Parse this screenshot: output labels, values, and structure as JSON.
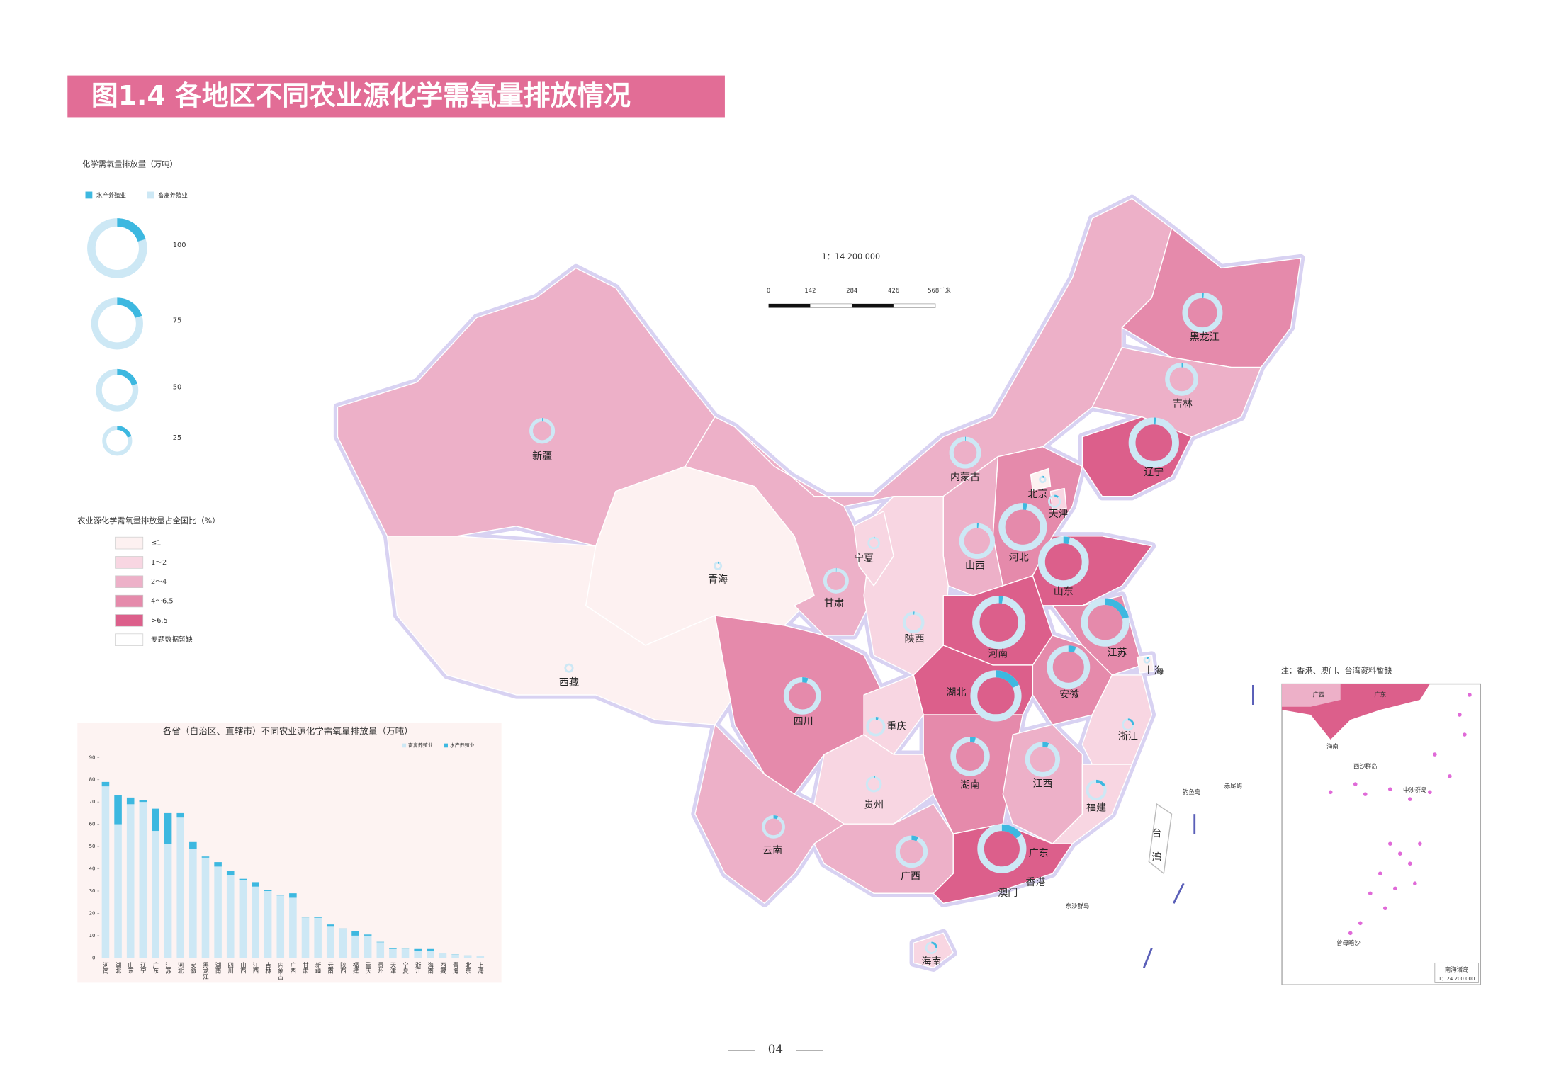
{
  "title": "图1.4  各地区不同农业源化学需氧量排放情况",
  "legend": {
    "size_title": "化学需氧量排放量（万吨）",
    "items": [
      {
        "name": "水产养殖业",
        "color": "#3db8e0"
      },
      {
        "name": "畜禽养殖业",
        "color": "#cde8f5"
      }
    ],
    "sizes": [
      100,
      75,
      50,
      25
    ],
    "class_title": "农业源化学需氧量排放量占全国比（%）",
    "classes": [
      {
        "label": "≤1",
        "color": "#fdf1f1"
      },
      {
        "label": "1～2",
        "color": "#f8d6e2"
      },
      {
        "label": "2～4",
        "color": "#edb0c8"
      },
      {
        "label": "4～6.5",
        "color": "#e58aab"
      },
      {
        "label": ">6.5",
        "color": "#dc5f8b"
      },
      {
        "label": "专题数据暂缺",
        "color": "#ffffff"
      }
    ]
  },
  "scale": {
    "ratio": "1：14 200 000",
    "ticks": [
      "0",
      "142",
      "284",
      "426",
      "568千米"
    ]
  },
  "map": {
    "provinces": [
      {
        "name": "新疆",
        "class": 2
      },
      {
        "name": "西藏",
        "class": 0
      },
      {
        "name": "青海",
        "class": 0
      },
      {
        "name": "甘肃",
        "class": 2
      },
      {
        "name": "内蒙古",
        "class": 2
      },
      {
        "name": "黑龙江",
        "class": 3
      },
      {
        "name": "吉林",
        "class": 2
      },
      {
        "name": "辽宁",
        "class": 4
      },
      {
        "name": "河北",
        "class": 3
      },
      {
        "name": "山西",
        "class": 2
      },
      {
        "name": "山东",
        "class": 4
      },
      {
        "name": "陕西",
        "class": 1
      },
      {
        "name": "宁夏",
        "class": 1
      },
      {
        "name": "河南",
        "class": 4
      },
      {
        "name": "江苏",
        "class": 3
      },
      {
        "name": "安徽",
        "class": 3
      },
      {
        "name": "湖北",
        "class": 4
      },
      {
        "name": "四川",
        "class": 3
      },
      {
        "name": "重庆",
        "class": 1
      },
      {
        "name": "贵州",
        "class": 1
      },
      {
        "name": "云南",
        "class": 2
      },
      {
        "name": "广西",
        "class": 2
      },
      {
        "name": "湖南",
        "class": 3
      },
      {
        "name": "江西",
        "class": 2
      },
      {
        "name": "浙江",
        "class": 1
      },
      {
        "name": "福建",
        "class": 1
      },
      {
        "name": "广东",
        "class": 4
      },
      {
        "name": "海南",
        "class": 1
      },
      {
        "name": "北京",
        "class": 0
      },
      {
        "name": "天津",
        "class": 1
      },
      {
        "name": "上海",
        "class": 0
      }
    ],
    "labels": [
      "香港",
      "澳门",
      "台",
      "湾",
      "钓鱼岛",
      "赤尾屿",
      "东沙群岛"
    ]
  },
  "inset": {
    "note": "注：香港、澳门、台湾资料暂缺",
    "labels": [
      "广西",
      "广东",
      "海南",
      "西沙群岛",
      "中沙群岛",
      "曾母暗沙"
    ],
    "title": "南海诸岛",
    "scale": "1：24 200 000"
  },
  "chart_data": {
    "type": "bar",
    "stacked": true,
    "title": "各省（自治区、直辖市）不同农业源化学需氧量排放量（万吨）",
    "categories": [
      "河南",
      "湖北",
      "山东",
      "辽宁",
      "广东",
      "江苏",
      "河北",
      "安徽",
      "黑龙江",
      "湖南",
      "四川",
      "山西",
      "江西",
      "吉林",
      "内蒙古",
      "广西",
      "甘肃",
      "新疆",
      "云南",
      "陕西",
      "福建",
      "重庆",
      "贵州",
      "天津",
      "宁夏",
      "浙江",
      "海南",
      "西藏",
      "青海",
      "北京",
      "上海"
    ],
    "series": [
      {
        "name": "畜禽养殖业",
        "color": "#cde8f5",
        "values": [
          77,
          60,
          69,
          70,
          57,
          51,
          63,
          49,
          45,
          41,
          37,
          35,
          32,
          30,
          28,
          27,
          18,
          18,
          14,
          13,
          10,
          10,
          7,
          4,
          4,
          3,
          3,
          2,
          1.5,
          1,
          0.8
        ]
      },
      {
        "name": "水产养殖业",
        "color": "#3db8e0",
        "values": [
          2,
          13,
          3,
          1,
          10,
          14,
          2,
          3,
          0.5,
          2,
          2,
          0.5,
          2,
          0.5,
          0.2,
          2,
          0.1,
          0.3,
          1,
          0.2,
          2,
          0.5,
          0.2,
          0.5,
          0.1,
          1,
          1,
          0,
          0.1,
          0.1,
          0.1
        ]
      }
    ],
    "ylim": [
      0,
      90
    ],
    "yticks": [
      0,
      10,
      20,
      30,
      40,
      50,
      60,
      70,
      80,
      90
    ]
  },
  "page_number": "04"
}
